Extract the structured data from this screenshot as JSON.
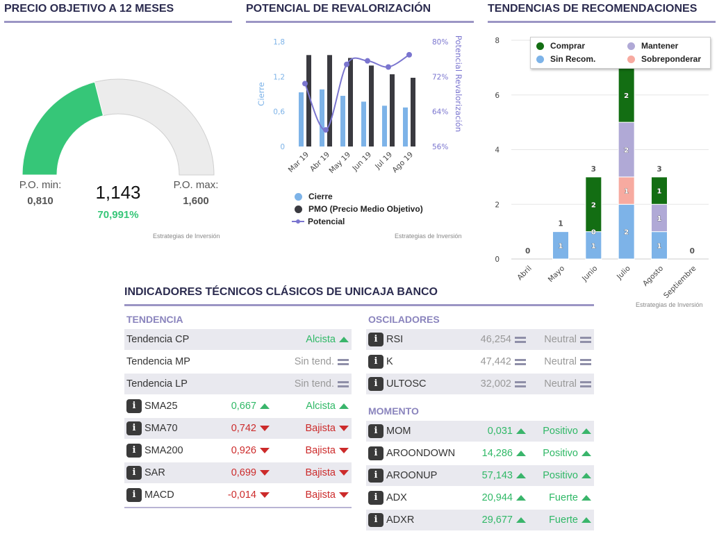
{
  "colors": {
    "comprar": "#136e13",
    "mantener": "#b0a9d6",
    "sin_recom": "#7db3e8",
    "sobreponderar": "#f7aaa0",
    "cierre": "#7db3e8",
    "pmo": "#3a3a40",
    "potencial": "#7a75cf",
    "gauge_fill": "#36c678",
    "gauge_bg": "#ececec"
  },
  "gauge": {
    "title": "PRECIO OBJETIVO A 12 MESES",
    "min_label": "P.O. min:",
    "min_value": "0,810",
    "max_label": "P.O. max:",
    "max_value": "1,600",
    "value": "1,143",
    "value_num": 1.143,
    "min_num": 0.81,
    "max_num": 1.6,
    "percent": "70,991%",
    "source": "Estrategias de Inversión"
  },
  "potencial": {
    "title": "POTENCIAL DE REVALORIZACIÓN",
    "source": "Estrategias de Inversión",
    "legend": [
      "Cierre",
      "PMO (Precio Medio Objetivo)",
      "Potencial"
    ]
  },
  "tendencias": {
    "title": "TENDENCIAS DE RECOMENDACIONES",
    "source": "Estrategias de Inversión",
    "legend": [
      "Comprar",
      "Mantener",
      "Sin Recom.",
      "Sobreponderar"
    ]
  },
  "chart_data": [
    {
      "type": "gauge",
      "title": "PRECIO OBJETIVO A 12 MESES",
      "min": 0.81,
      "max": 1.6,
      "value": 1.143,
      "percent": 70.991
    },
    {
      "type": "bar+line",
      "title": "POTENCIAL DE REVALORIZACIÓN",
      "categories": [
        "Mar 19",
        "Abr 19",
        "May 19",
        "Jun 19",
        "Jul 19",
        "Ago 19"
      ],
      "series": [
        {
          "name": "Cierre",
          "axis": "left",
          "type": "bar",
          "values": [
            0.93,
            0.98,
            0.87,
            0.77,
            0.7,
            0.67
          ]
        },
        {
          "name": "PMO (Precio Medio Objetivo)",
          "axis": "left",
          "type": "bar",
          "values": [
            1.57,
            1.57,
            1.52,
            1.39,
            1.24,
            1.18
          ]
        },
        {
          "name": "Potencial",
          "axis": "right",
          "type": "line",
          "values": [
            70.4,
            59.8,
            74.8,
            75.6,
            74.2,
            77.0
          ]
        }
      ],
      "ylabel": "Cierre",
      "y2label": "Potencial Revalorización",
      "ylim": [
        0,
        1.8
      ],
      "yticks": [
        "0",
        "0,6",
        "1,2",
        "1,8"
      ],
      "y2lim": [
        56,
        80
      ],
      "y2ticks": [
        "56%",
        "64%",
        "72%",
        "80%"
      ]
    },
    {
      "type": "bar",
      "stacked": true,
      "title": "TENDENCIAS DE RECOMENDACIONES",
      "categories": [
        "Abril",
        "Mayo",
        "Junio",
        "Julio",
        "Agosto",
        "Septiembre"
      ],
      "series": [
        {
          "name": "Sin Recom.",
          "values": [
            0,
            1,
            1,
            2,
            1,
            0
          ]
        },
        {
          "name": "Sobreponderar",
          "values": [
            0,
            0,
            0,
            1,
            0,
            0
          ]
        },
        {
          "name": "Mantener",
          "values": [
            0,
            0,
            0,
            2,
            1,
            0
          ]
        },
        {
          "name": "Comprar",
          "values": [
            0,
            0,
            2,
            2,
            1,
            0
          ]
        }
      ],
      "totals": [
        "0",
        "1",
        "3",
        "7",
        "3",
        "0"
      ],
      "zero_labels": [
        {
          "category": "Junio",
          "series": "Mantener",
          "label": "0"
        }
      ],
      "ylim": [
        0,
        8
      ],
      "yticks": [
        "0",
        "2",
        "4",
        "6",
        "8"
      ]
    }
  ],
  "indicadores": {
    "title": "INDICADORES TÉCNICOS CLÁSICOS DE UNICAJA BANCO",
    "tendencia": {
      "header": "TENDENCIA",
      "rows": [
        {
          "name": "Tendencia CP",
          "value": "",
          "signal": "Alcista",
          "dir": "up",
          "info": false
        },
        {
          "name": "Tendencia MP",
          "value": "",
          "signal": "Sin tend.",
          "dir": "eq",
          "info": false
        },
        {
          "name": "Tendencia LP",
          "value": "",
          "signal": "Sin tend.",
          "dir": "eq",
          "info": false
        },
        {
          "name": "SMA25",
          "value": "0,667",
          "signal": "Alcista",
          "dir": "up",
          "info": true
        },
        {
          "name": "SMA70",
          "value": "0,742",
          "signal": "Bajista",
          "dir": "down",
          "info": true
        },
        {
          "name": "SMA200",
          "value": "0,926",
          "signal": "Bajista",
          "dir": "down",
          "info": true
        },
        {
          "name": "SAR",
          "value": "0,699",
          "signal": "Bajista",
          "dir": "down",
          "info": true
        },
        {
          "name": "MACD",
          "value": "-0,014",
          "signal": "Bajista",
          "dir": "down",
          "info": true
        }
      ]
    },
    "osciladores": {
      "header": "OSCILADORES",
      "rows": [
        {
          "name": "RSI",
          "value": "46,254",
          "signal": "Neutral",
          "dir": "eq",
          "info": true
        },
        {
          "name": "K",
          "value": "47,442",
          "signal": "Neutral",
          "dir": "eq",
          "info": true
        },
        {
          "name": "ULTOSC",
          "value": "32,002",
          "signal": "Neutral",
          "dir": "eq",
          "info": true
        }
      ]
    },
    "momento": {
      "header": "MOMENTO",
      "rows": [
        {
          "name": "MOM",
          "value": "0,031",
          "signal": "Positivo",
          "dir": "up",
          "info": true
        },
        {
          "name": "AROONDOWN",
          "value": "14,286",
          "signal": "Positivo",
          "dir": "up",
          "info": true
        },
        {
          "name": "AROONUP",
          "value": "57,143",
          "signal": "Positivo",
          "dir": "up",
          "info": true
        },
        {
          "name": "ADX",
          "value": "20,944",
          "signal": "Fuerte",
          "dir": "up",
          "info": true
        },
        {
          "name": "ADXR",
          "value": "29,677",
          "signal": "Fuerte",
          "dir": "up",
          "info": true
        }
      ]
    }
  }
}
